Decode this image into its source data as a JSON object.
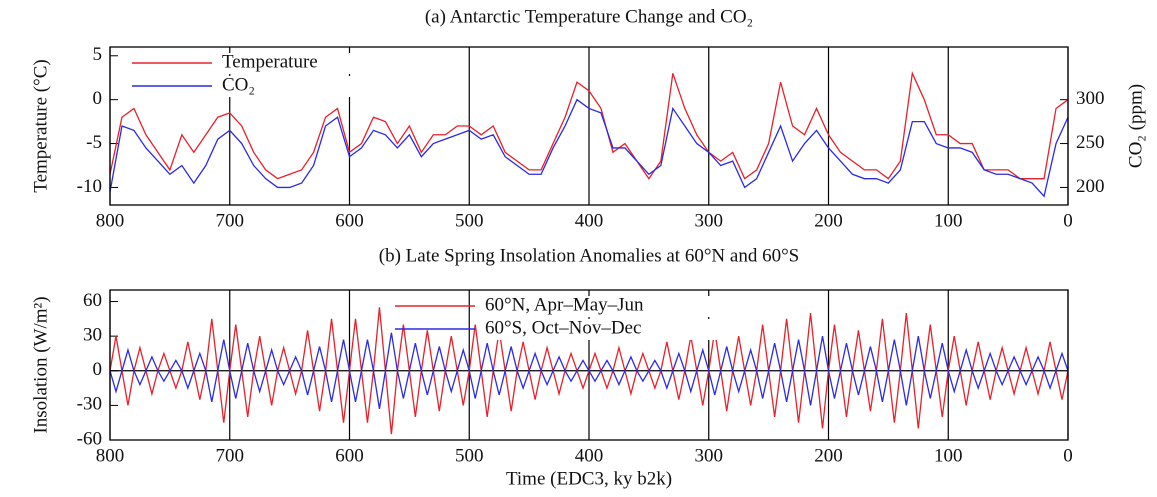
{
  "chart_data": [
    {
      "type": "line",
      "title": "(a)  Antarctic Temperature Change and CO₂",
      "ylabel": "Temperature (°C)",
      "y2label": "CO₂ (ppm)",
      "x": [
        800,
        790,
        780,
        770,
        760,
        750,
        740,
        730,
        720,
        710,
        700,
        690,
        680,
        670,
        660,
        650,
        640,
        630,
        620,
        610,
        600,
        590,
        580,
        570,
        560,
        550,
        540,
        530,
        520,
        510,
        500,
        490,
        480,
        470,
        460,
        450,
        440,
        430,
        420,
        410,
        400,
        390,
        380,
        370,
        360,
        350,
        340,
        330,
        320,
        310,
        300,
        290,
        280,
        270,
        260,
        250,
        240,
        230,
        220,
        210,
        200,
        190,
        180,
        170,
        160,
        150,
        140,
        130,
        120,
        110,
        100,
        90,
        80,
        70,
        60,
        50,
        40,
        30,
        20,
        10,
        0
      ],
      "series": [
        {
          "name": "Temperature",
          "color": "#e8202a",
          "values": [
            -8.5,
            -2,
            -1,
            -4,
            -6,
            -8,
            -4,
            -6,
            -4,
            -2,
            -1.5,
            -3,
            -6,
            -8,
            -9,
            -8.5,
            -8,
            -6,
            -2,
            -1,
            -6,
            -5,
            -2,
            -2.5,
            -5,
            -3,
            -6,
            -4,
            -4,
            -3,
            -3,
            -4,
            -3,
            -6,
            -7,
            -8,
            -8,
            -5,
            -2,
            2,
            1,
            -1,
            -6,
            -5,
            -7,
            -9,
            -7,
            3,
            -1,
            -4,
            -6,
            -7,
            -6,
            -9,
            -8,
            -5,
            2,
            -3,
            -4,
            -1,
            -4,
            -6,
            -7,
            -8,
            -8,
            -9,
            -7,
            3,
            0,
            -4,
            -4,
            -5,
            -5,
            -8,
            -8,
            -8,
            -9,
            -9,
            -9,
            -1,
            0
          ]
        },
        {
          "name": "CO₂",
          "color": "#2a2ae8",
          "axis": "y2",
          "values": [
            195,
            270,
            265,
            245,
            230,
            215,
            225,
            205,
            225,
            255,
            265,
            250,
            225,
            210,
            200,
            200,
            205,
            225,
            270,
            280,
            235,
            245,
            265,
            260,
            245,
            260,
            235,
            250,
            255,
            260,
            265,
            255,
            260,
            235,
            225,
            215,
            215,
            245,
            270,
            300,
            290,
            285,
            245,
            245,
            230,
            215,
            225,
            290,
            270,
            250,
            240,
            225,
            230,
            200,
            210,
            240,
            270,
            230,
            250,
            265,
            245,
            230,
            215,
            210,
            210,
            205,
            220,
            275,
            275,
            250,
            245,
            245,
            240,
            220,
            215,
            215,
            210,
            205,
            190,
            250,
            280
          ]
        }
      ],
      "xlim": [
        800,
        0
      ],
      "xticks": [
        800,
        700,
        600,
        500,
        400,
        300,
        200,
        100,
        0
      ],
      "ylim": [
        -12,
        6
      ],
      "yticks": [
        5,
        0,
        -5,
        -10
      ],
      "y2lim": [
        180,
        360
      ],
      "y2ticks": [
        200,
        250,
        300
      ],
      "grid": "x",
      "legend": "upper left"
    },
    {
      "type": "line",
      "title": "(b)  Late Spring Insolation Anomalies at 60°N and 60°S",
      "ylabel": "Insolation (W/m²)",
      "xlabel": "Time (EDC3, ky b2k)",
      "x": [
        800,
        795,
        790,
        785,
        780,
        775,
        770,
        765,
        760,
        755,
        750,
        745,
        740,
        735,
        730,
        725,
        720,
        715,
        710,
        705,
        700,
        695,
        690,
        685,
        680,
        675,
        670,
        665,
        660,
        655,
        650,
        645,
        640,
        635,
        630,
        625,
        620,
        615,
        610,
        605,
        600,
        595,
        590,
        585,
        580,
        575,
        570,
        565,
        560,
        555,
        550,
        545,
        540,
        535,
        530,
        525,
        520,
        515,
        510,
        505,
        500,
        495,
        490,
        485,
        480,
        475,
        470,
        465,
        460,
        455,
        450,
        445,
        440,
        435,
        430,
        425,
        420,
        415,
        410,
        405,
        400,
        395,
        390,
        385,
        380,
        375,
        370,
        365,
        360,
        355,
        350,
        345,
        340,
        335,
        330,
        325,
        320,
        315,
        310,
        305,
        300,
        295,
        290,
        285,
        280,
        275,
        270,
        265,
        260,
        255,
        250,
        245,
        240,
        235,
        230,
        225,
        220,
        215,
        210,
        205,
        200,
        195,
        190,
        185,
        180,
        175,
        170,
        165,
        160,
        155,
        150,
        145,
        140,
        135,
        130,
        125,
        120,
        115,
        110,
        105,
        100,
        95,
        90,
        85,
        80,
        75,
        70,
        65,
        60,
        55,
        50,
        45,
        40,
        35,
        30,
        25,
        20,
        15,
        10,
        5,
        0
      ],
      "series": [
        {
          "name": "60°N, Apr–May–Jun",
          "color": "#e8202a",
          "values": [
            0,
            30,
            0,
            -30,
            0,
            20,
            0,
            -20,
            0,
            15,
            0,
            -15,
            0,
            25,
            0,
            -25,
            0,
            45,
            0,
            -45,
            0,
            40,
            0,
            -40,
            0,
            30,
            0,
            -30,
            0,
            20,
            0,
            -20,
            0,
            35,
            0,
            -35,
            0,
            45,
            0,
            -45,
            0,
            45,
            0,
            -45,
            0,
            55,
            0,
            -55,
            0,
            40,
            0,
            -40,
            0,
            35,
            0,
            -35,
            0,
            30,
            0,
            -30,
            0,
            40,
            0,
            -40,
            0,
            35,
            0,
            -35,
            0,
            25,
            0,
            -25,
            0,
            20,
            0,
            -20,
            0,
            15,
            0,
            -15,
            0,
            15,
            0,
            -15,
            0,
            20,
            0,
            -20,
            0,
            15,
            0,
            -15,
            0,
            25,
            0,
            -25,
            0,
            30,
            0,
            -30,
            0,
            35,
            0,
            -35,
            0,
            30,
            0,
            -30,
            0,
            40,
            0,
            -40,
            0,
            45,
            0,
            -45,
            0,
            50,
            0,
            -50,
            0,
            40,
            0,
            -40,
            0,
            35,
            0,
            -35,
            0,
            45,
            0,
            -45,
            0,
            50,
            0,
            -50,
            0,
            40,
            0,
            -40,
            0,
            30,
            0,
            -30,
            0,
            25,
            0,
            -25,
            0,
            20,
            0,
            -20,
            0,
            20,
            0,
            -20,
            0,
            25,
            0,
            -25,
            0
          ]
        },
        {
          "name": "60°S, Oct–Nov–Dec",
          "color": "#2a2ae8",
          "values": [
            0,
            -18,
            0,
            18,
            0,
            -12,
            0,
            12,
            0,
            -9,
            0,
            9,
            0,
            -15,
            0,
            15,
            0,
            -27,
            0,
            27,
            0,
            -24,
            0,
            24,
            0,
            -18,
            0,
            18,
            0,
            -12,
            0,
            12,
            0,
            -21,
            0,
            21,
            0,
            -27,
            0,
            27,
            0,
            -27,
            0,
            27,
            0,
            -33,
            0,
            33,
            0,
            -24,
            0,
            24,
            0,
            -21,
            0,
            21,
            0,
            -18,
            0,
            18,
            0,
            -24,
            0,
            24,
            0,
            -21,
            0,
            21,
            0,
            -15,
            0,
            15,
            0,
            -12,
            0,
            12,
            0,
            -9,
            0,
            9,
            0,
            -9,
            0,
            9,
            0,
            -12,
            0,
            12,
            0,
            -9,
            0,
            9,
            0,
            -15,
            0,
            15,
            0,
            -18,
            0,
            18,
            0,
            -21,
            0,
            21,
            0,
            -18,
            0,
            18,
            0,
            -24,
            0,
            24,
            0,
            -27,
            0,
            27,
            0,
            -30,
            0,
            30,
            0,
            -24,
            0,
            24,
            0,
            -21,
            0,
            21,
            0,
            -27,
            0,
            27,
            0,
            -30,
            0,
            30,
            0,
            -24,
            0,
            24,
            0,
            -18,
            0,
            18,
            0,
            -15,
            0,
            15,
            0,
            -12,
            0,
            12,
            0,
            -12,
            0,
            12,
            0,
            -15,
            0,
            15,
            0
          ]
        }
      ],
      "xlim": [
        800,
        0
      ],
      "xticks": [
        800,
        700,
        600,
        500,
        400,
        300,
        200,
        100,
        0
      ],
      "ylim": [
        -60,
        70
      ],
      "yticks": [
        60,
        30,
        0,
        -30,
        -60
      ],
      "grid": "x",
      "zero_line": true,
      "legend": "upper center"
    }
  ]
}
